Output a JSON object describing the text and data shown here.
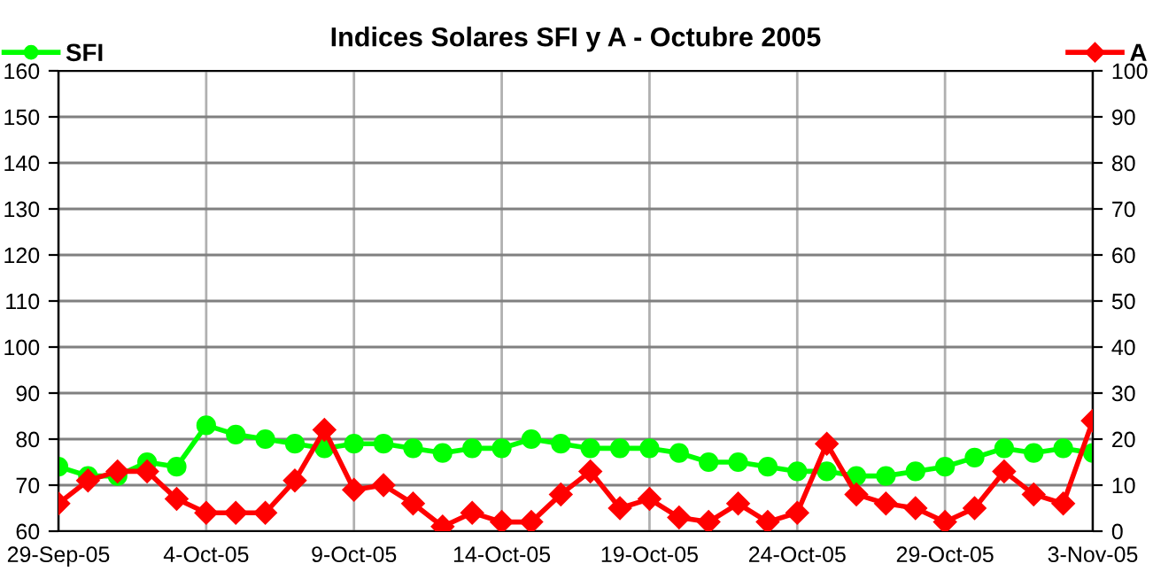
{
  "chart_data": {
    "type": "line",
    "title": "Indices Solares SFI y A - Octubre 2005",
    "x": [
      "2005-09-29",
      "2005-09-30",
      "2005-10-01",
      "2005-10-02",
      "2005-10-03",
      "2005-10-04",
      "2005-10-05",
      "2005-10-06",
      "2005-10-07",
      "2005-10-08",
      "2005-10-09",
      "2005-10-10",
      "2005-10-11",
      "2005-10-12",
      "2005-10-13",
      "2005-10-14",
      "2005-10-15",
      "2005-10-16",
      "2005-10-17",
      "2005-10-18",
      "2005-10-19",
      "2005-10-20",
      "2005-10-21",
      "2005-10-22",
      "2005-10-23",
      "2005-10-24",
      "2005-10-25",
      "2005-10-26",
      "2005-10-27",
      "2005-10-28",
      "2005-10-29",
      "2005-10-30",
      "2005-10-31",
      "2005-11-01",
      "2005-11-02",
      "2005-11-03"
    ],
    "series": [
      {
        "name": "SFI",
        "color": "#00ff00",
        "marker": "circle",
        "values": [
          74,
          72,
          72,
          75,
          74,
          83,
          81,
          80,
          79,
          78,
          79,
          79,
          78,
          77,
          78,
          78,
          80,
          79,
          78,
          78,
          78,
          77,
          75,
          75,
          74,
          73,
          73,
          72,
          72,
          73,
          74,
          76,
          78,
          77,
          78,
          77
        ]
      },
      {
        "name": "A",
        "color": "#ff0000",
        "marker": "diamond",
        "axis": "y2",
        "values": [
          6,
          11,
          13,
          13,
          7,
          4,
          4,
          4,
          11,
          22,
          9,
          10,
          6,
          1,
          4,
          2,
          2,
          8,
          13,
          5,
          7,
          3,
          2,
          6,
          2,
          4,
          19,
          8,
          6,
          5,
          2,
          5,
          13,
          8,
          6,
          24
        ]
      }
    ],
    "xlim": [
      "2005-09-29",
      "2005-11-03"
    ],
    "xticks": [
      {
        "value": "2005-09-29",
        "label": "29-Sep-05"
      },
      {
        "value": "2005-10-04",
        "label": "4-Oct-05"
      },
      {
        "value": "2005-10-09",
        "label": "9-Oct-05"
      },
      {
        "value": "2005-10-14",
        "label": "14-Oct-05"
      },
      {
        "value": "2005-10-19",
        "label": "19-Oct-05"
      },
      {
        "value": "2005-10-24",
        "label": "24-Oct-05"
      },
      {
        "value": "2005-10-29",
        "label": "29-Oct-05"
      },
      {
        "value": "2005-11-03",
        "label": "3-Nov-05"
      }
    ],
    "ylim": [
      60,
      160
    ],
    "yticks": [
      60,
      70,
      80,
      90,
      100,
      110,
      120,
      130,
      140,
      150,
      160
    ],
    "y2lim": [
      0,
      100
    ],
    "y2ticks": [
      0,
      10,
      20,
      30,
      40,
      50,
      60,
      70,
      80,
      90,
      100
    ],
    "grid": true,
    "legend": "top",
    "line_style": "solid"
  }
}
